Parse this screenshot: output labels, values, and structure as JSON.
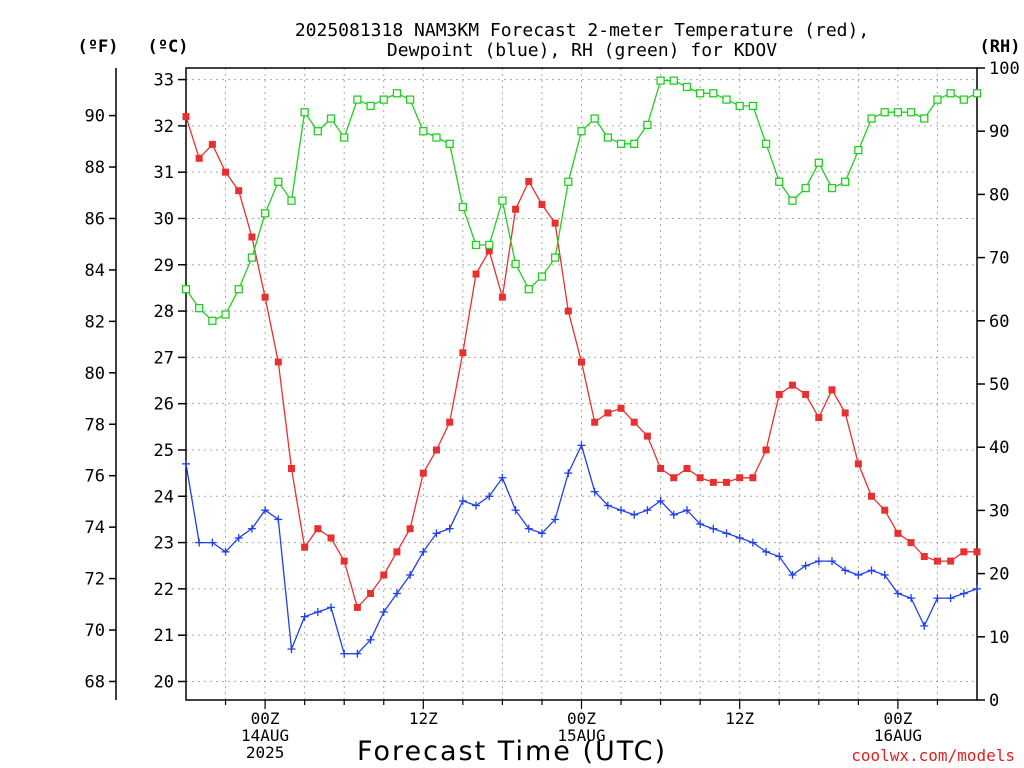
{
  "chart_data": {
    "type": "line",
    "title_line1": "2025081318 NAM3KM Forecast 2-meter Temperature (red),",
    "title_line2": "Dewpoint (blue), RH (green) for KDOV",
    "xlabel": "Forecast Time (UTC)",
    "credit": "coolwx.com/models",
    "unit_labels": {
      "fahrenheit": "(ºF)",
      "celsius": "(ºC)",
      "rh": "(RH)"
    },
    "x_range_hours": [
      -6,
      54
    ],
    "celsius_range": [
      19.6,
      33.25
    ],
    "rh_range": [
      0,
      100
    ],
    "celsius_ticks": [
      20,
      21,
      22,
      23,
      24,
      25,
      26,
      27,
      28,
      29,
      30,
      31,
      32,
      33
    ],
    "fahrenheit_ticks": [
      68,
      70,
      72,
      74,
      76,
      78,
      80,
      82,
      84,
      86,
      88,
      90
    ],
    "rh_ticks": [
      0,
      10,
      20,
      30,
      40,
      50,
      60,
      70,
      80,
      90,
      100
    ],
    "x_ticks": [
      {
        "hour": 0,
        "lines": [
          "00Z",
          "14AUG",
          "2025"
        ]
      },
      {
        "hour": 12,
        "lines": [
          "12Z"
        ]
      },
      {
        "hour": 24,
        "lines": [
          "00Z",
          "15AUG"
        ]
      },
      {
        "hour": 36,
        "lines": [
          "12Z"
        ]
      },
      {
        "hour": 48,
        "lines": [
          "00Z",
          "16AUG"
        ]
      }
    ],
    "hours": [
      -6,
      -5,
      -4,
      -3,
      -2,
      -1,
      0,
      1,
      2,
      3,
      4,
      5,
      6,
      7,
      8,
      9,
      10,
      11,
      12,
      13,
      14,
      15,
      16,
      17,
      18,
      19,
      20,
      21,
      22,
      23,
      24,
      25,
      26,
      27,
      28,
      29,
      30,
      31,
      32,
      33,
      34,
      35,
      36,
      37,
      38,
      39,
      40,
      41,
      42,
      43,
      44,
      45,
      46,
      47,
      48,
      49,
      50,
      51,
      52,
      53,
      54
    ],
    "series": [
      {
        "name": "Temperature",
        "color": "#e83030",
        "marker": "filled-square",
        "values": [
          32.2,
          31.3,
          31.6,
          31.0,
          30.6,
          29.6,
          28.3,
          26.9,
          24.6,
          22.9,
          23.3,
          23.1,
          22.6,
          21.6,
          21.9,
          22.3,
          22.8,
          23.3,
          24.5,
          25.0,
          25.6,
          27.1,
          28.8,
          29.3,
          28.3,
          30.2,
          30.8,
          30.3,
          29.9,
          28.0,
          26.9,
          25.6,
          25.8,
          25.9,
          25.6,
          25.3,
          24.6,
          24.4,
          24.6,
          24.4,
          24.3,
          24.3,
          24.4,
          24.4,
          25.0,
          26.2,
          26.4,
          26.2,
          25.7,
          26.3,
          25.8,
          24.7,
          24.0,
          23.7,
          23.2,
          23.0,
          22.7,
          22.6,
          22.6,
          22.8,
          22.8
        ]
      },
      {
        "name": "Dewpoint",
        "color": "#2040e8",
        "marker": "plus",
        "values": [
          24.7,
          23.0,
          23.0,
          22.8,
          23.1,
          23.3,
          23.7,
          23.5,
          20.7,
          21.4,
          21.5,
          21.6,
          20.6,
          20.6,
          20.9,
          21.5,
          21.9,
          22.3,
          22.8,
          23.2,
          23.3,
          23.9,
          23.8,
          24.0,
          24.4,
          23.7,
          23.3,
          23.2,
          23.5,
          24.5,
          25.1,
          24.1,
          23.8,
          23.7,
          23.6,
          23.7,
          23.9,
          23.6,
          23.7,
          23.4,
          23.3,
          23.2,
          23.1,
          23.0,
          22.8,
          22.7,
          22.3,
          22.5,
          22.6,
          22.6,
          22.4,
          22.3,
          22.4,
          22.3,
          21.9,
          21.8,
          21.2,
          21.8,
          21.8,
          21.9,
          22.0
        ]
      },
      {
        "name": "RH",
        "color": "#20d020",
        "marker": "open-square",
        "values": [
          65,
          62,
          60,
          61,
          65,
          70,
          77,
          82,
          79,
          93,
          90,
          92,
          89,
          95,
          94,
          95,
          96,
          95,
          90,
          89,
          88,
          78,
          72,
          72,
          79,
          69,
          65,
          67,
          70,
          82,
          90,
          92,
          89,
          88,
          88,
          91,
          98,
          98,
          97,
          96,
          96,
          95,
          94,
          94,
          88,
          82,
          79,
          81,
          85,
          81,
          82,
          87,
          92,
          93,
          93,
          93,
          92,
          95,
          96,
          95,
          96
        ]
      }
    ]
  }
}
